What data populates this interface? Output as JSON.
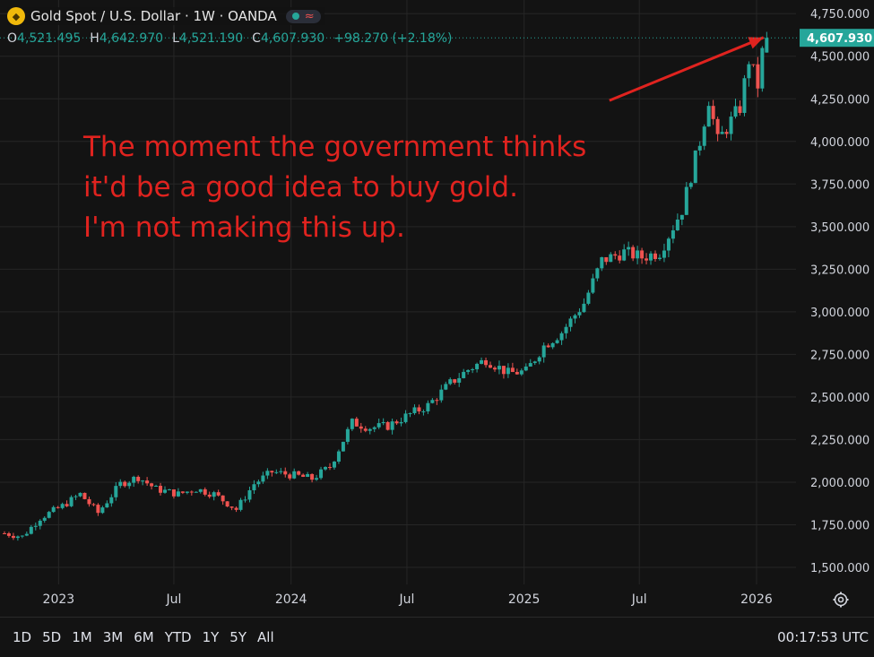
{
  "header": {
    "title": "Gold Spot / U.S. Dollar · 1W · OANDA",
    "icons": [
      "gold-logo-icon",
      "market-open-dot-icon",
      "wave-icon"
    ]
  },
  "ohlc": {
    "open_label": "O",
    "open": "4,521.495",
    "high_label": "H",
    "high": "4,642.970",
    "low_label": "L",
    "low": "4,521.190",
    "close_label": "C",
    "close": "4,607.930",
    "change": "+98.270 (+2.18%)"
  },
  "annotation": [
    "The moment the government thinks",
    "it'd be a good idea to buy gold.",
    "I'm not making this up."
  ],
  "bottom_bar": {
    "ranges": [
      "1D",
      "5D",
      "1M",
      "3M",
      "6M",
      "YTD",
      "1Y",
      "5Y",
      "All"
    ],
    "clock": "00:17:53 UTC"
  },
  "colors": {
    "up": "#26a69a",
    "down": "#ef5350",
    "annotation": "#e0231f",
    "background": "#131313",
    "grid": "#262626"
  },
  "chart_data": {
    "type": "candlestick",
    "title": "Gold Spot / U.S. Dollar · 1W · OANDA",
    "last_price_label": "4,607.930",
    "ylim": [
      1400,
      4830
    ],
    "y_ticks": [
      1500,
      1750,
      2000,
      2250,
      2500,
      2750,
      3000,
      3250,
      3500,
      3750,
      4000,
      4250,
      4500,
      4750
    ],
    "y_tick_labels": [
      "1,500.000",
      "1,750.000",
      "2,000.000",
      "2,250.000",
      "2,500.000",
      "2,750.000",
      "3,000.000",
      "3,250.000",
      "3,500.000",
      "3,750.000",
      "4,000.000",
      "4,250.000",
      "4,500.000",
      "4,750.000"
    ],
    "x_ticks": [
      {
        "label": "2023",
        "date": "2023-01-01"
      },
      {
        "label": "Jul",
        "date": "2023-07-01"
      },
      {
        "label": "2024",
        "date": "2024-01-01"
      },
      {
        "label": "Jul",
        "date": "2024-07-01"
      },
      {
        "label": "2025",
        "date": "2025-01-01"
      },
      {
        "label": "Jul",
        "date": "2025-07-01"
      },
      {
        "label": "2026",
        "date": "2026-01-01"
      }
    ],
    "x_range": [
      "2022-10-01",
      "2026-03-04"
    ],
    "close_series": [
      {
        "date": "2022-10-08",
        "close": 1700
      },
      {
        "date": "2022-11-05",
        "close": 1680
      },
      {
        "date": "2022-12-03",
        "close": 1790
      },
      {
        "date": "2023-01-07",
        "close": 1860
      },
      {
        "date": "2023-02-04",
        "close": 1930
      },
      {
        "date": "2023-03-04",
        "close": 1820
      },
      {
        "date": "2023-04-08",
        "close": 1990
      },
      {
        "date": "2023-05-06",
        "close": 2030
      },
      {
        "date": "2023-06-03",
        "close": 1960
      },
      {
        "date": "2023-07-08",
        "close": 1930
      },
      {
        "date": "2023-08-05",
        "close": 1960
      },
      {
        "date": "2023-09-02",
        "close": 1930
      },
      {
        "date": "2023-10-07",
        "close": 1840
      },
      {
        "date": "2023-11-04",
        "close": 1990
      },
      {
        "date": "2023-12-02",
        "close": 2060
      },
      {
        "date": "2024-01-06",
        "close": 2040
      },
      {
        "date": "2024-02-03",
        "close": 2020
      },
      {
        "date": "2024-03-02",
        "close": 2090
      },
      {
        "date": "2024-04-06",
        "close": 2350
      },
      {
        "date": "2024-05-04",
        "close": 2320
      },
      {
        "date": "2024-06-01",
        "close": 2330
      },
      {
        "date": "2024-07-06",
        "close": 2400
      },
      {
        "date": "2024-08-03",
        "close": 2450
      },
      {
        "date": "2024-09-07",
        "close": 2580
      },
      {
        "date": "2024-10-05",
        "close": 2660
      },
      {
        "date": "2024-11-02",
        "close": 2720
      },
      {
        "date": "2024-12-07",
        "close": 2640
      },
      {
        "date": "2025-01-04",
        "close": 2650
      },
      {
        "date": "2025-02-01",
        "close": 2800
      },
      {
        "date": "2025-03-01",
        "close": 2880
      },
      {
        "date": "2025-04-05",
        "close": 3050
      },
      {
        "date": "2025-05-03",
        "close": 3300
      },
      {
        "date": "2025-06-07",
        "close": 3350
      },
      {
        "date": "2025-07-05",
        "close": 3320
      },
      {
        "date": "2025-08-02",
        "close": 3350
      },
      {
        "date": "2025-09-06",
        "close": 3600
      },
      {
        "date": "2025-10-04",
        "close": 4000
      },
      {
        "date": "2025-10-18",
        "close": 4250
      },
      {
        "date": "2025-11-01",
        "close": 4000
      },
      {
        "date": "2025-11-15",
        "close": 4080
      },
      {
        "date": "2025-12-06",
        "close": 4200
      },
      {
        "date": "2025-12-20",
        "close": 4480
      },
      {
        "date": "2026-01-03",
        "close": 4330
      },
      {
        "date": "2026-01-10",
        "close": 4520
      },
      {
        "date": "2026-01-17",
        "close": 4607.93
      }
    ],
    "annotation_arrow": {
      "from": {
        "date": "2025-05-15",
        "price": 4240
      },
      "to": {
        "date": "2026-01-12",
        "price": 4610
      }
    }
  }
}
